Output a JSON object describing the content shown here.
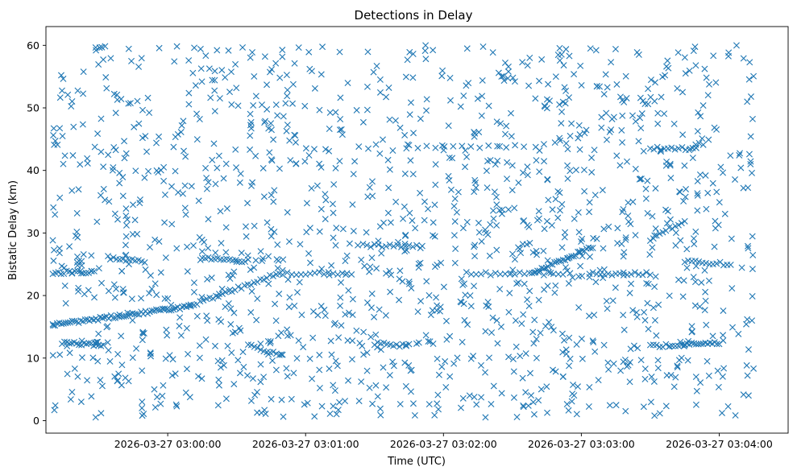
{
  "chart_data": {
    "type": "scatter",
    "title": "Detections in Delay",
    "xlabel": "Time (UTC)",
    "ylabel": "Bistatic Delay (km)",
    "marker": "x",
    "color": "#1f77b4",
    "grid": false,
    "legend": "none",
    "xlim": [
      "2026-03-27 02:59:07",
      "2026-03-27 03:04:30"
    ],
    "ylim": [
      -2,
      63
    ],
    "xticks": [
      "2026-03-27 03:00:00",
      "2026-03-27 03:01:00",
      "2026-03-27 03:02:00",
      "2026-03-27 03:03:00",
      "2026-03-27 03:04:00"
    ],
    "yticks": [
      0,
      10,
      20,
      30,
      40,
      50,
      60
    ],
    "tracks": [
      {
        "x_start": "2026-03-27 02:59:10",
        "x_end": "2026-03-27 03:00:10",
        "y_start": 15.3,
        "y_end": 18.3,
        "count": 65
      },
      {
        "x_start": "2026-03-27 03:00:10",
        "x_end": "2026-03-27 03:00:50",
        "y_start": 18.3,
        "y_end": 23.8,
        "count": 30
      },
      {
        "x_start": "2026-03-27 02:59:10",
        "x_end": "2026-03-27 02:59:28",
        "y_start": 23.7,
        "y_end": 23.7,
        "count": 16
      },
      {
        "x_start": "2026-03-27 02:59:14",
        "x_end": "2026-03-27 02:59:32",
        "y_start": 12.5,
        "y_end": 12.0,
        "count": 18
      },
      {
        "x_start": "2026-03-27 02:59:35",
        "x_end": "2026-03-27 02:59:50",
        "y_start": 26.0,
        "y_end": 25.5,
        "count": 12
      },
      {
        "x_start": "2026-03-27 03:00:15",
        "x_end": "2026-03-27 03:00:35",
        "y_start": 26.0,
        "y_end": 25.5,
        "count": 16
      },
      {
        "x_start": "2026-03-27 03:00:35",
        "x_end": "2026-03-27 03:00:50",
        "y_start": 12.0,
        "y_end": 10.5,
        "count": 12
      },
      {
        "x_start": "2026-03-27 03:00:50",
        "x_end": "2026-03-27 03:01:20",
        "y_start": 23.5,
        "y_end": 23.5,
        "count": 16
      },
      {
        "x_start": "2026-03-27 03:01:25",
        "x_end": "2026-03-27 03:01:50",
        "y_start": 28.0,
        "y_end": 27.8,
        "count": 16
      },
      {
        "x_start": "2026-03-27 03:01:30",
        "x_end": "2026-03-27 03:01:45",
        "y_start": 12.3,
        "y_end": 12.0,
        "count": 12
      },
      {
        "x_start": "2026-03-27 03:01:45",
        "x_end": "2026-03-27 03:02:35",
        "y_start": 43.8,
        "y_end": 43.8,
        "count": 14
      },
      {
        "x_start": "2026-03-27 03:02:10",
        "x_end": "2026-03-27 03:02:50",
        "y_start": 23.5,
        "y_end": 23.5,
        "count": 20
      },
      {
        "x_start": "2026-03-27 03:02:40",
        "x_end": "2026-03-27 03:03:05",
        "y_start": 23.8,
        "y_end": 27.8,
        "count": 28
      },
      {
        "x_start": "2026-03-27 03:03:05",
        "x_end": "2026-03-27 03:03:30",
        "y_start": 23.5,
        "y_end": 23.5,
        "count": 16
      },
      {
        "x_start": "2026-03-27 03:03:30",
        "x_end": "2026-03-27 03:03:45",
        "y_start": 29.0,
        "y_end": 32.0,
        "count": 12
      },
      {
        "x_start": "2026-03-27 03:03:30",
        "x_end": "2026-03-27 03:03:50",
        "y_start": 43.5,
        "y_end": 43.5,
        "count": 14
      },
      {
        "x_start": "2026-03-27 03:03:30",
        "x_end": "2026-03-27 03:03:45",
        "y_start": 12.0,
        "y_end": 12.0,
        "count": 12
      },
      {
        "x_start": "2026-03-27 03:03:45",
        "x_end": "2026-03-27 03:04:00",
        "y_start": 12.3,
        "y_end": 12.3,
        "count": 16
      },
      {
        "x_start": "2026-03-27 03:03:45",
        "x_end": "2026-03-27 03:04:05",
        "y_start": 25.5,
        "y_end": 25.0,
        "count": 14
      }
    ],
    "scatter_region": {
      "x_start": "2026-03-27 02:59:10",
      "x_end": "2026-03-27 03:04:15",
      "y_min": 0.5,
      "y_max": 60,
      "count": 1450
    }
  }
}
